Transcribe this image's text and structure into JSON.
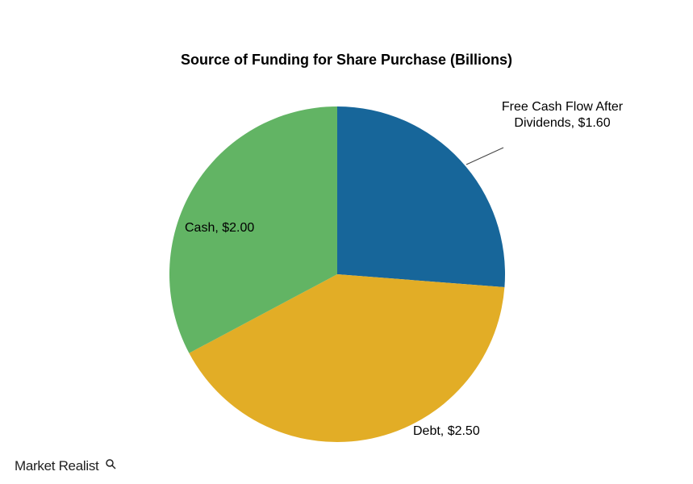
{
  "chart_data": {
    "type": "pie",
    "title": "Source of Funding for Share Purchase (Billions)",
    "values": [
      1.6,
      2.5,
      2.0
    ],
    "value_labels": [
      "Free Cash Flow After Dividends, $1.60",
      "Debt, $2.50",
      "Cash, $2.00"
    ],
    "colors": [
      "#17669a",
      "#e2ad26",
      "#62b464"
    ]
  },
  "watermark": "Market Realist"
}
